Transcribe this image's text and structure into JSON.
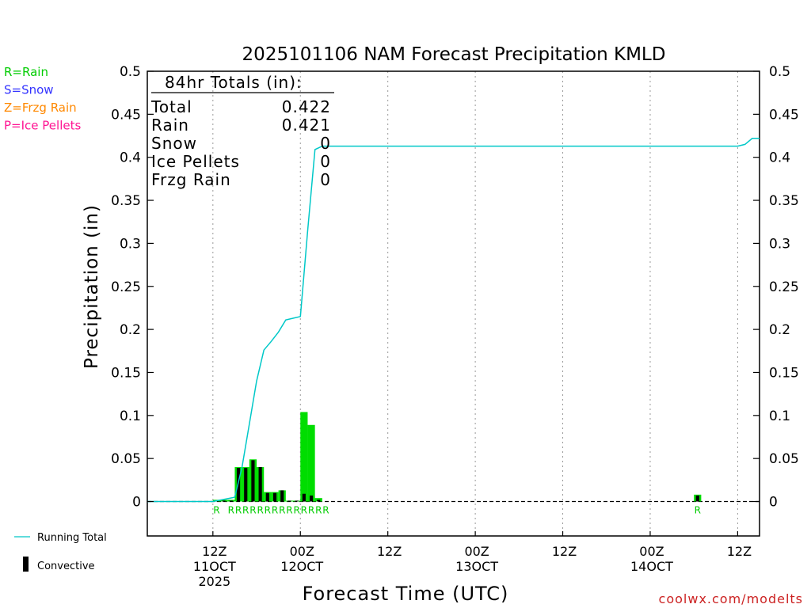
{
  "chart_data": {
    "type": "bar",
    "title": "2025101106 NAM Forecast Precipitation KMLD",
    "xlabel": "Forecast Time (UTC)",
    "ylabel": "Precipitation (in)",
    "ylim": [
      -0.04,
      0.5
    ],
    "y_ticks": [
      "0.5",
      "0.45",
      "0.4",
      "0.35",
      "0.3",
      "0.25",
      "0.2",
      "0.15",
      "0.1",
      "0.05",
      "0"
    ],
    "y_tick_values": [
      0.5,
      0.45,
      0.4,
      0.35,
      0.3,
      0.25,
      0.2,
      0.15,
      0.1,
      0.05,
      0
    ],
    "x_range_hours": [
      -3,
      81
    ],
    "x_ticks": [
      {
        "hour": 6,
        "lines": [
          "12Z",
          "11OCT",
          "2025"
        ]
      },
      {
        "hour": 18,
        "lines": [
          "00Z",
          "12OCT"
        ]
      },
      {
        "hour": 30,
        "lines": [
          "12Z"
        ]
      },
      {
        "hour": 42,
        "lines": [
          "00Z",
          "13OCT"
        ]
      },
      {
        "hour": 54,
        "lines": [
          "12Z"
        ]
      },
      {
        "hour": 66,
        "lines": [
          "00Z",
          "14OCT"
        ]
      },
      {
        "hour": 78,
        "lines": [
          "12Z"
        ]
      }
    ],
    "bars_hours": [
      7,
      8,
      9,
      10,
      11,
      12,
      13,
      14,
      15,
      16,
      17,
      18,
      19,
      20,
      21,
      22,
      23,
      24,
      73
    ],
    "bars_total": [
      0.002,
      0.002,
      0.002,
      0.04,
      0.04,
      0.049,
      0.04,
      0.011,
      0.011,
      0.013,
      0.001,
      0.001,
      0.104,
      0.089,
      0.004,
      0,
      0,
      0,
      0.008
    ],
    "bars_convective": [
      0.001,
      0.001,
      0.001,
      0.039,
      0.039,
      0.048,
      0.04,
      0.01,
      0.01,
      0.013,
      0.001,
      0.001,
      0.009,
      0.007,
      0.002,
      0,
      0,
      0,
      0.007
    ],
    "ptype_hours": [
      7,
      9,
      10,
      11,
      12,
      13,
      14,
      15,
      16,
      17,
      18,
      19,
      20,
      21,
      22,
      73
    ],
    "ptype_labels": [
      "R",
      "R",
      "R",
      "R",
      "R",
      "R",
      "R",
      "R",
      "R",
      "R",
      "R",
      "R",
      "R",
      "R",
      "R",
      "R"
    ],
    "running_total_hours": [
      -3,
      6,
      9,
      10,
      11,
      12,
      13,
      14,
      15,
      16,
      17,
      18,
      19,
      20,
      21,
      22,
      78,
      79,
      80,
      81
    ],
    "running_total_values": [
      0,
      0,
      0.005,
      0.04,
      0.09,
      0.14,
      0.176,
      0.186,
      0.197,
      0.211,
      0.213,
      0.215,
      0.315,
      0.409,
      0.413,
      0.413,
      0.413,
      0.415,
      0.422,
      0.422
    ],
    "zero_line": "dashed"
  },
  "totals_box": {
    "header": "84hr Totals (in):",
    "rows": [
      {
        "label": "Total",
        "value": "0.422"
      },
      {
        "label": "Rain",
        "value": "0.421"
      },
      {
        "label": "Snow",
        "value": "0"
      },
      {
        "label": "Ice Pellets",
        "value": "0"
      },
      {
        "label": "Frzg Rain",
        "value": "0"
      }
    ]
  },
  "legend_ptypes": [
    {
      "text": "R=Rain",
      "color": "#00cc00"
    },
    {
      "text": "S=Snow",
      "color": "#3333ff"
    },
    {
      "text": "Z=Frzg Rain",
      "color": "#ff8800"
    },
    {
      "text": "P=Ice Pellets",
      "color": "#ff1493"
    }
  ],
  "legend_lines": {
    "running_total": "Running Total",
    "convective": "Convective"
  },
  "colors": {
    "running_total": "#00c8c8",
    "rain_bar": "#00dd00",
    "convective_bar": "#000000",
    "ptype_label": "#00cc00",
    "credit": "#cc2222"
  },
  "credit": "coolwx.com/modelts"
}
